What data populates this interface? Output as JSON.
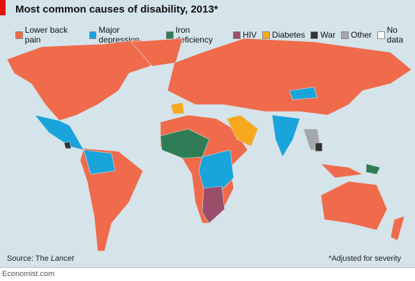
{
  "header": {
    "title": "Most common causes of disability, 2013*"
  },
  "legend": [
    {
      "label": "Lower back pain",
      "color": "#f06b4b"
    },
    {
      "label": "Major depression",
      "color": "#1aa4dc"
    },
    {
      "label": "Iron deficiency",
      "color": "#2f7d56"
    },
    {
      "label": "HIV",
      "color": "#9a4e6a"
    },
    {
      "label": "Diabetes",
      "color": "#f6a91d"
    },
    {
      "label": "War",
      "color": "#333333"
    },
    {
      "label": "Other",
      "color": "#a5a8aa"
    },
    {
      "label": "No data",
      "color": "#ffffff"
    }
  ],
  "footer": {
    "source_prefix": "Source: The",
    "source_italic": "Lancet",
    "note": "*Adjusted for severity",
    "brand": "Economist.com"
  }
}
